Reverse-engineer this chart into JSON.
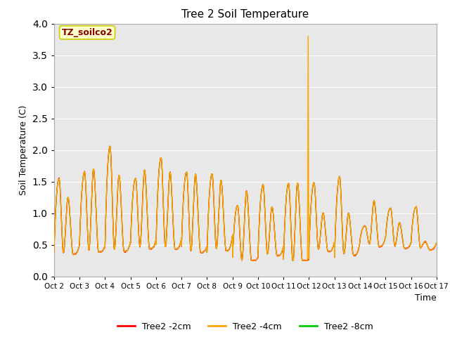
{
  "title": "Tree 2 Soil Temperature",
  "ylabel": "Soil Temperature (C)",
  "xlabel": "Time",
  "ylim": [
    0.0,
    4.0
  ],
  "xlim": [
    2,
    17
  ],
  "annotation_text": "TZ_soilco2",
  "annotation_color": "#8b0000",
  "annotation_bg": "#ffffcc",
  "annotation_border": "#cccc00",
  "bg_color": "#e8e8e8",
  "legend_labels": [
    "Tree2 -2cm",
    "Tree2 -4cm",
    "Tree2 -8cm"
  ],
  "legend_colors": [
    "#ff0000",
    "#ffa500",
    "#00cc00"
  ],
  "line_color_2cm": "#ff0000",
  "line_color_4cm": "#ffa500",
  "line_color_8cm": "#00cc00",
  "xtick_labels": [
    "Oct 2",
    "Oct 3",
    "Oct 4",
    "Oct 5",
    "Oct 6",
    "Oct 7",
    "Oct 8",
    "Oct 9",
    "Oct 10",
    "Oct 11",
    "Oct 12",
    "Oct 13",
    "Oct 14",
    "Oct 15",
    "Oct 16",
    "Oct 17"
  ],
  "ytick_values": [
    0.0,
    0.5,
    1.0,
    1.5,
    2.0,
    2.5,
    3.0,
    3.5,
    4.0
  ],
  "peak_data": {
    "Oct2": {
      "p1": 1.55,
      "p2": 1.25,
      "min1": 0.38,
      "min2": 0.5
    },
    "Oct3": {
      "p1": 1.65,
      "p2": 1.7,
      "min1": 0.5,
      "min2": 0.48
    },
    "Oct4": {
      "p1": 2.06,
      "p2": 1.6,
      "min1": 0.45,
      "min2": 0.55
    },
    "Oct5": {
      "p1": 1.55,
      "p2": 1.68,
      "min1": 0.53,
      "min2": 0.58
    },
    "Oct6": {
      "p1": 1.88,
      "p2": 1.65,
      "min1": 0.5,
      "min2": 0.6
    },
    "Oct7": {
      "p1": 1.65,
      "p2": 1.62,
      "min1": 0.48,
      "min2": 0.48
    },
    "Oct8": {
      "p1": 1.62,
      "p2": 1.52,
      "min1": 0.38,
      "min2": 0.65
    },
    "Oct9": {
      "p1": 1.12,
      "p2": 1.35,
      "min1": 0.3,
      "min2": 0.3
    },
    "Oct10": {
      "p1": 1.45,
      "p2": 1.1,
      "min1": 0.35,
      "min2": 0.48
    },
    "Oct11": {
      "p1": 1.47,
      "p2": 1.48,
      "min1": 0.27,
      "min2": 0.28
    },
    "Oct12": {
      "p1": 1.48,
      "p2": 1.0,
      "min1": 0.45,
      "min2": 0.55
    },
    "Oct13": {
      "p1": 1.58,
      "p2": 1.0,
      "min1": 0.3,
      "min2": 0.55
    },
    "Oct14": {
      "p1": 0.8,
      "p2": 1.2,
      "min1": 0.58,
      "min2": 0.62
    },
    "Oct15": {
      "p1": 1.08,
      "p2": 0.85,
      "min1": 0.6,
      "min2": 0.53
    },
    "Oct16": {
      "p1": 1.1,
      "p2": 0.55,
      "min1": 0.53,
      "min2": 0.53
    }
  },
  "orange_spike_x": 11.97,
  "orange_spike_y": 3.8
}
